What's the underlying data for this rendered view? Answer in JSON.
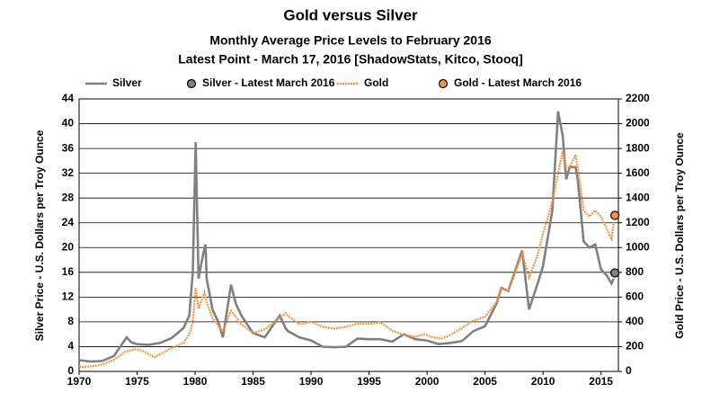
{
  "chart_data": {
    "type": "line",
    "title": "Gold versus Silver",
    "subtitle": "Monthly Average Price Levels to February 2016",
    "subtitle2": "Latest Point - March 17, 2016 [ShadowStats, Kitco, Stooq]",
    "y_label": "Silver  Price - U.S. Dollars per Troy Ounce",
    "y2_label": "Gold Price - U.S. Dollars per Troy Ounce",
    "xlim": [
      1970,
      2016.5
    ],
    "xticks": [
      1970,
      1975,
      1980,
      1985,
      1990,
      1995,
      2000,
      2005,
      2010,
      2015
    ],
    "ylim": [
      0,
      44
    ],
    "yticks": [
      0,
      4,
      8,
      12,
      16,
      20,
      24,
      28,
      32,
      36,
      40,
      44
    ],
    "y2lim": [
      0,
      2200
    ],
    "y2ticks": [
      0,
      200,
      400,
      600,
      800,
      1000,
      1200,
      1400,
      1600,
      1800,
      2000,
      2200
    ],
    "grid": true,
    "series": [
      {
        "name": "Silver",
        "color": "#808080",
        "style": "line",
        "x": [
          1970,
          1971,
          1972,
          1973,
          1974.1,
          1974.5,
          1975,
          1976,
          1977,
          1978,
          1979,
          1979.5,
          1979.8,
          1980.05,
          1980.3,
          1980.7,
          1980.9,
          1981,
          1981.5,
          1982,
          1982.4,
          1983.1,
          1983.5,
          1984,
          1985,
          1986,
          1987.3,
          1987.8,
          1988,
          1989,
          1990,
          1991,
          1992,
          1993,
          1994,
          1995,
          1996,
          1997,
          1998,
          1999,
          2000,
          2001,
          2002,
          2003,
          2004,
          2005,
          2006,
          2006.4,
          2007,
          2008.2,
          2008.8,
          2009.5,
          2010,
          2010.8,
          2011.3,
          2011.7,
          2012,
          2012.3,
          2012.8,
          2013,
          2013.5,
          2014,
          2014.5,
          2015,
          2015.5,
          2015.9,
          2016.1
        ],
        "values": [
          1.8,
          1.6,
          1.7,
          2.5,
          5.5,
          4.7,
          4.4,
          4.3,
          4.6,
          5.4,
          7,
          9,
          16,
          37,
          15,
          19,
          20.5,
          15,
          10,
          8,
          5.5,
          14,
          11,
          9,
          6.2,
          5.5,
          9,
          7,
          6.5,
          5.5,
          5,
          4,
          3.9,
          4,
          5.3,
          5.2,
          5.2,
          4.8,
          6,
          5.2,
          5,
          4.4,
          4.6,
          4.9,
          6.5,
          7.3,
          11,
          13.5,
          13,
          19.5,
          10,
          14,
          17,
          26,
          42,
          38,
          31,
          33,
          33,
          31,
          21,
          20,
          20.5,
          16.5,
          15.5,
          14.2,
          15
        ]
      },
      {
        "name": "Silver - Latest March 2016",
        "color": "#808080",
        "style": "point",
        "x": [
          2016.2
        ],
        "values": [
          15.9
        ]
      },
      {
        "name": "Gold",
        "color": "#f7943f",
        "style": "line",
        "axis": "y2",
        "x": [
          1970,
          1971,
          1972,
          1973,
          1974,
          1974.9,
          1975.5,
          1976.5,
          1977,
          1978,
          1979,
          1979.5,
          1979.8,
          1980.05,
          1980.3,
          1980.8,
          1981,
          1981.5,
          1982.4,
          1983.1,
          1984,
          1985,
          1986,
          1987.8,
          1988,
          1989,
          1990,
          1991,
          1992,
          1993,
          1994,
          1995,
          1996,
          1997,
          1998,
          1999,
          1999.8,
          2000.5,
          2001.3,
          2002,
          2003,
          2004,
          2005,
          2006,
          2006.4,
          2007,
          2008.2,
          2008.8,
          2009.5,
          2010,
          2010.8,
          2011.7,
          2012,
          2012.3,
          2012.8,
          2013,
          2013.5,
          2014,
          2014.5,
          2015,
          2015.9,
          2016.1
        ],
        "values": [
          35,
          40,
          55,
          95,
          160,
          180,
          165,
          115,
          140,
          190,
          230,
          300,
          400,
          675,
          510,
          640,
          560,
          430,
          320,
          490,
          380,
          310,
          340,
          470,
          450,
          380,
          400,
          360,
          345,
          360,
          385,
          385,
          395,
          330,
          295,
          280,
          300,
          275,
          265,
          295,
          350,
          410,
          440,
          560,
          680,
          650,
          950,
          760,
          930,
          1110,
          1370,
          1780,
          1650,
          1650,
          1750,
          1650,
          1300,
          1250,
          1300,
          1250,
          1070,
          1200
        ]
      },
      {
        "name": "Gold - Latest March 2016",
        "color": "#f7943f",
        "style": "point",
        "axis": "y2",
        "x": [
          2016.2
        ],
        "values": [
          1260
        ]
      }
    ]
  }
}
